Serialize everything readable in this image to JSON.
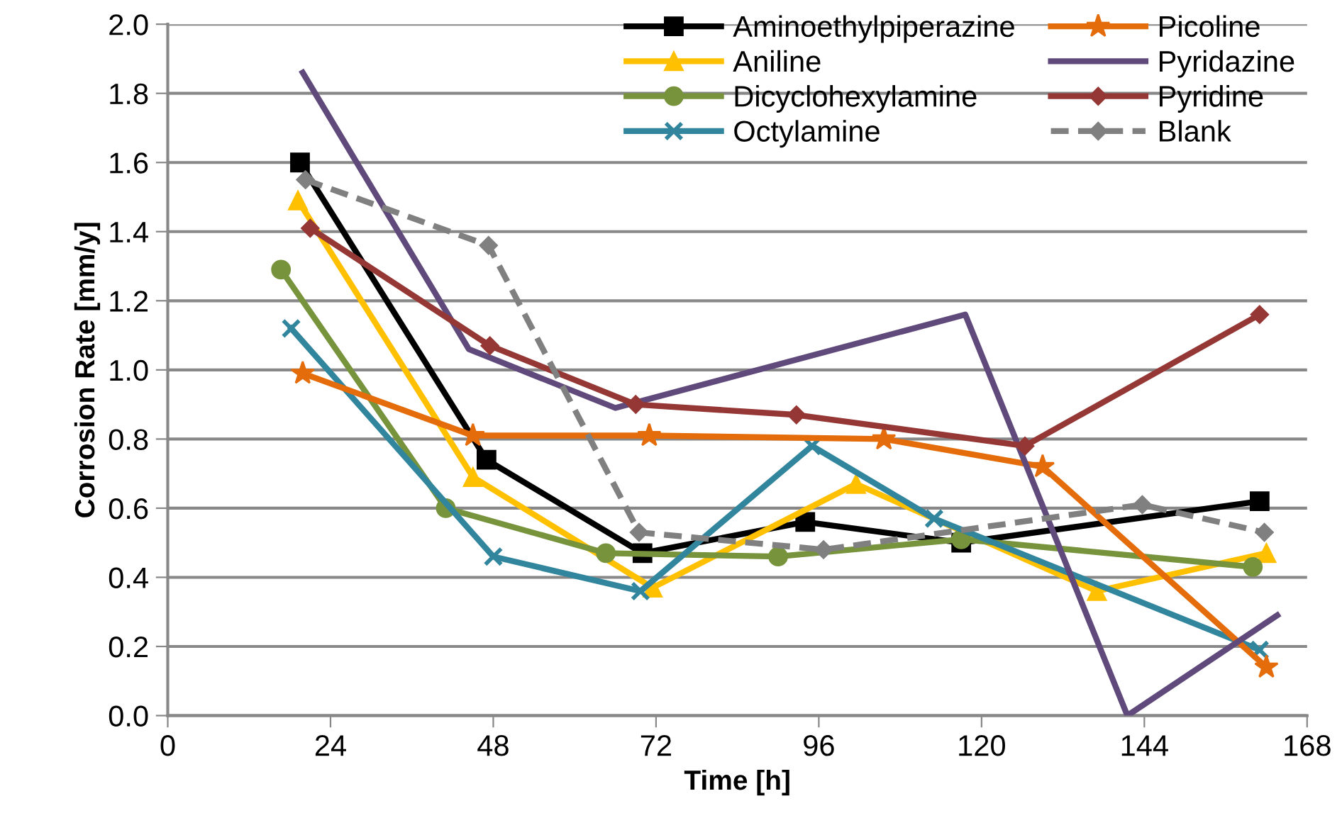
{
  "chart_data": {
    "type": "line",
    "xlabel": "Time [h]",
    "ylabel": "Corrosion Rate [mm/y]",
    "xlim": [
      0,
      168
    ],
    "xticks": [
      0,
      24,
      48,
      72,
      96,
      120,
      144,
      168
    ],
    "ylim": [
      0,
      2
    ],
    "yticks": [
      {
        "value": 0,
        "label": "0.0"
      },
      {
        "value": 0.2,
        "label": "0.2"
      },
      {
        "value": 0.4,
        "label": "0.4"
      },
      {
        "value": 0.6,
        "label": "0.6"
      },
      {
        "value": 0.8,
        "label": "0.8"
      },
      {
        "value": 1.0,
        "label": "1.0"
      },
      {
        "value": 1.2,
        "label": "1.2"
      },
      {
        "value": 1.4,
        "label": "1.4"
      },
      {
        "value": 1.6,
        "label": "1.6"
      },
      {
        "value": 1.8,
        "label": "1.8"
      },
      {
        "value": 2.0,
        "label": "2.0"
      }
    ],
    "grid": "y",
    "legend": "top right",
    "series": [
      {
        "name": "Aminoethylpiperazine",
        "color": "#000000",
        "marker": "square",
        "line_style": "solid",
        "x": [
          19.5,
          47,
          70,
          94,
          117,
          161
        ],
        "values": [
          1.6,
          0.74,
          0.47,
          0.56,
          0.5,
          0.62
        ]
      },
      {
        "name": "Aniline",
        "color": "#ffc000",
        "marker": "triangle",
        "line_style": "solid",
        "x": [
          19.2,
          45,
          71.5,
          101.5,
          137,
          162
        ],
        "values": [
          1.49,
          0.69,
          0.37,
          0.67,
          0.36,
          0.47
        ]
      },
      {
        "name": "Dicyclohexylamine",
        "color": "#77933c",
        "marker": "circle",
        "line_style": "solid",
        "x": [
          16.7,
          41,
          64.6,
          90,
          117,
          160
        ],
        "values": [
          1.29,
          0.6,
          0.47,
          0.46,
          0.51,
          0.43
        ]
      },
      {
        "name": "Octylamine",
        "color": "#31859c",
        "marker": "cross",
        "line_style": "solid",
        "x": [
          18.2,
          48,
          69.7,
          95,
          113,
          161
        ],
        "values": [
          1.12,
          0.46,
          0.36,
          0.78,
          0.57,
          0.19
        ]
      },
      {
        "name": "Picoline",
        "color": "#e46c0a",
        "marker": "star",
        "line_style": "solid",
        "x": [
          19.9,
          45,
          71,
          105.6,
          129,
          162
        ],
        "values": [
          0.99,
          0.81,
          0.81,
          0.8,
          0.72,
          0.14
        ]
      },
      {
        "name": "Pyridazine",
        "color": "#604a7b",
        "marker": "none",
        "line_style": "solid",
        "x": [
          19.9,
          44.4,
          66,
          117.6,
          141.5,
          163.6
        ],
        "values": [
          1.86,
          1.06,
          0.89,
          1.16,
          0.0,
          0.29
        ]
      },
      {
        "name": "Pyridine",
        "color": "#953735",
        "marker": "diamond",
        "line_style": "solid",
        "x": [
          21,
          47.5,
          69,
          92.7,
          126.4,
          161
        ],
        "values": [
          1.41,
          1.07,
          0.9,
          0.87,
          0.78,
          1.16
        ]
      },
      {
        "name": "Blank",
        "color": "#808080",
        "marker": "diamond",
        "line_style": "dashed",
        "x": [
          20.3,
          47.3,
          69.5,
          96.7,
          143.7,
          161.7
        ],
        "values": [
          1.55,
          1.36,
          0.53,
          0.48,
          0.61,
          0.53
        ]
      }
    ]
  }
}
